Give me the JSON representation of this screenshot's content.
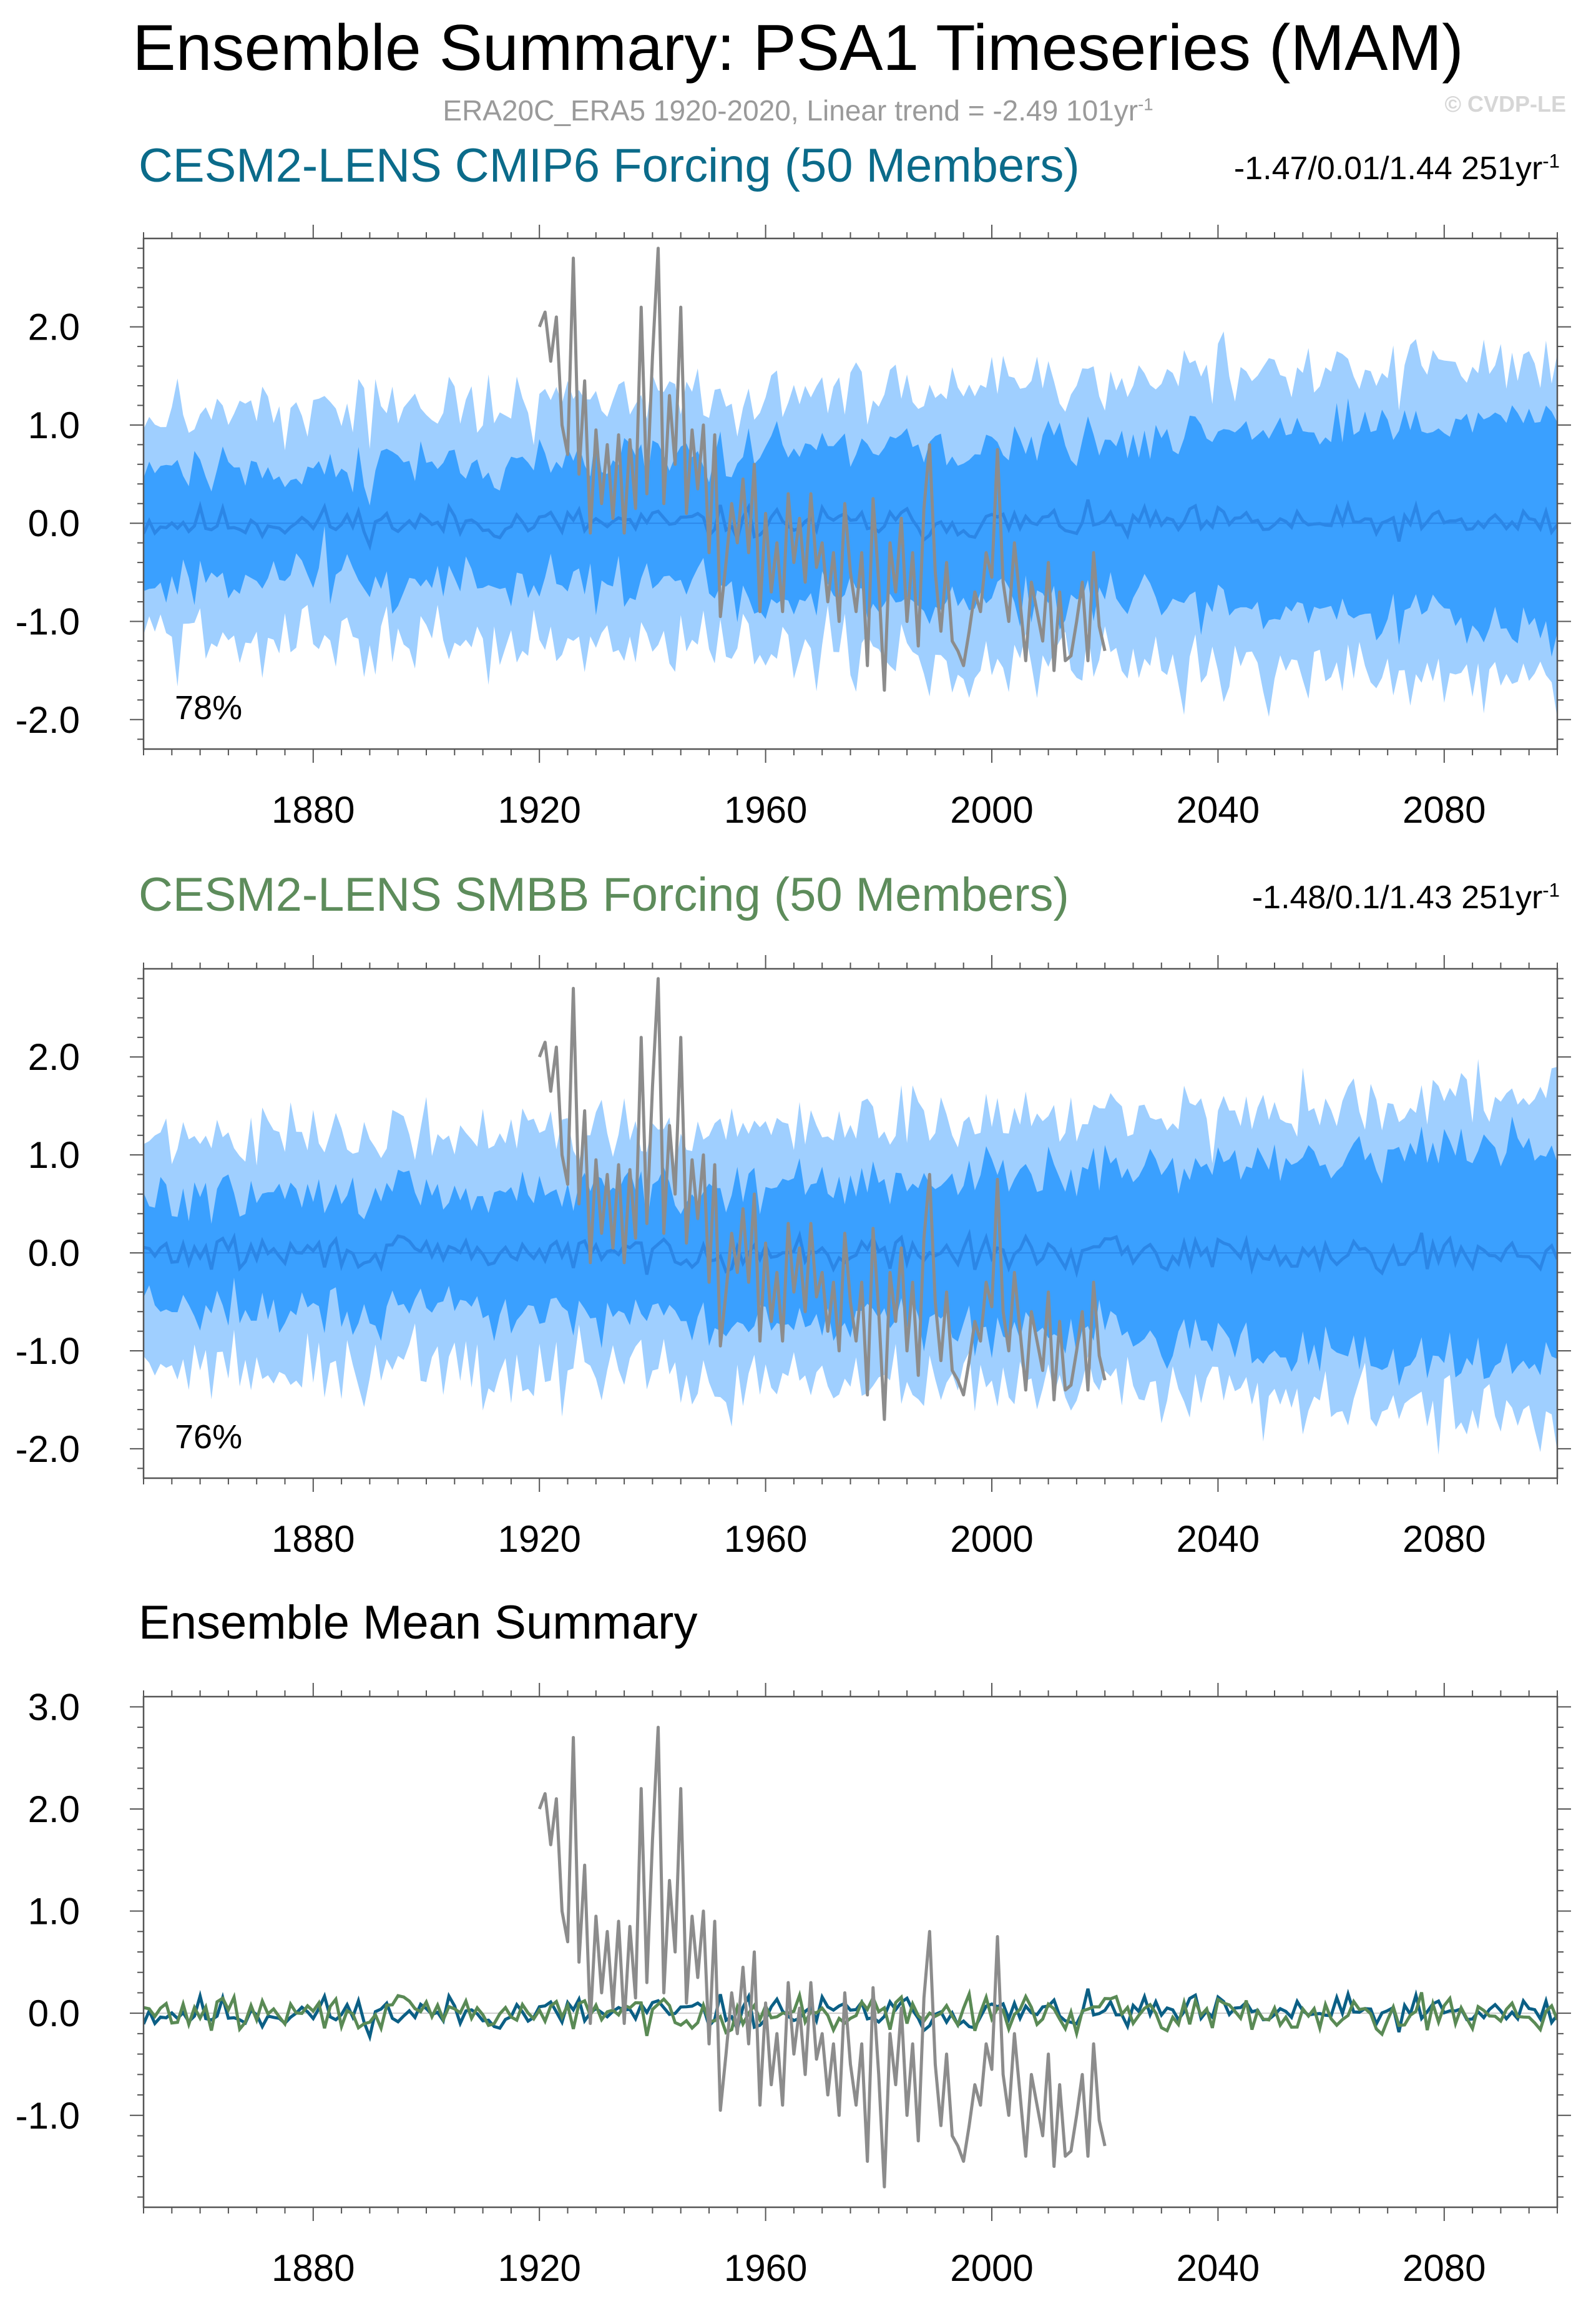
{
  "title": "Ensemble Summary: PSA1 Timeseries (MAM)",
  "subtitle": "ERA20C_ERA5 1920-2020, Linear trend = -2.49 101yr",
  "subtitle_sup": "-1",
  "watermark": "© CVDP-LE",
  "colors": {
    "outer_band": "#9fcfff",
    "inner_band": "#3aa0ff",
    "ens_mean_line": "#2b86e6",
    "obs_line": "#8c8c8c",
    "cmip6_title": "#0b6b8a",
    "smbb_title": "#5d8c5b",
    "cmip6_mean": "#0b5f85",
    "smbb_mean": "#5a8a55"
  },
  "panels": [
    {
      "title": "CESM2-LENS CMIP6 Forcing (50 Members)",
      "stats": "-1.47/0.01/1.44 251yr",
      "stats_sup": "-1",
      "percent": "78%"
    },
    {
      "title": "CESM2-LENS SMBB Forcing (50 Members)",
      "stats": "-1.48/0.1/1.43 251yr",
      "stats_sup": "-1",
      "percent": "76%"
    },
    {
      "title": "Ensemble Mean Summary"
    }
  ],
  "chart_data": [
    {
      "type": "area",
      "title": "CESM2-LENS CMIP6 Forcing (50 Members)",
      "x_range": [
        1850,
        2100
      ],
      "xticks": [
        1880,
        1920,
        1960,
        2000,
        2040,
        2080
      ],
      "ylim": [
        -2.3,
        2.9
      ],
      "yticks": [
        2.0,
        1.0,
        0.0,
        -1.0,
        -2.0
      ],
      "ytick_labels": [
        "2.0",
        "1.0",
        "0.0",
        "-1.0",
        "-2.0"
      ],
      "bands": {
        "outer_half_width": 1.45,
        "inner_half_width": 0.62,
        "outer_start": 1.15,
        "outer_end": 1.65,
        "inner_start": 0.55,
        "inner_end": 1.1
      },
      "series": [
        {
          "name": "ensemble mean",
          "seed": 11,
          "amp": 0.12
        },
        {
          "name": "ERA20C_ERA5 observations",
          "x_start": 1920,
          "x_end": 2020,
          "key_points": [
            [
              1920,
              2.0
            ],
            [
              1921,
              2.15
            ],
            [
              1922,
              1.65
            ],
            [
              1923,
              2.1
            ],
            [
              1924,
              1.0
            ],
            [
              1925,
              0.7
            ],
            [
              1926,
              2.7
            ],
            [
              1927,
              0.5
            ],
            [
              1928,
              1.45
            ],
            [
              1929,
              -0.1
            ],
            [
              1930,
              0.95
            ],
            [
              1931,
              0.2
            ],
            [
              1932,
              0.8
            ],
            [
              1933,
              0.05
            ],
            [
              1934,
              0.9
            ],
            [
              1935,
              -0.1
            ],
            [
              1936,
              0.85
            ],
            [
              1937,
              0.15
            ],
            [
              1938,
              2.2
            ],
            [
              1939,
              0.3
            ],
            [
              1940,
              1.7
            ],
            [
              1941,
              2.8
            ],
            [
              1942,
              0.2
            ],
            [
              1943,
              1.3
            ],
            [
              1944,
              0.6
            ],
            [
              1945,
              2.2
            ],
            [
              1946,
              0.1
            ],
            [
              1947,
              0.95
            ],
            [
              1948,
              0.35
            ],
            [
              1949,
              1.0
            ],
            [
              1950,
              -0.3
            ],
            [
              1951,
              0.9
            ],
            [
              1952,
              -0.95
            ],
            [
              1953,
              -0.4
            ],
            [
              1954,
              0.2
            ],
            [
              1955,
              -0.2
            ],
            [
              1956,
              0.45
            ],
            [
              1957,
              -0.3
            ],
            [
              1958,
              0.6
            ],
            [
              1959,
              -0.9
            ],
            [
              1960,
              0.1
            ],
            [
              1961,
              -0.7
            ],
            [
              1962,
              -0.2
            ],
            [
              1963,
              -0.9
            ],
            [
              1964,
              0.3
            ],
            [
              1965,
              -0.4
            ],
            [
              1966,
              0.05
            ],
            [
              1967,
              -0.6
            ],
            [
              1968,
              0.3
            ],
            [
              1969,
              -0.45
            ],
            [
              1970,
              -0.2
            ],
            [
              1971,
              -0.8
            ],
            [
              1972,
              -0.3
            ],
            [
              1973,
              -1.0
            ],
            [
              1974,
              0.2
            ],
            [
              1975,
              -0.5
            ],
            [
              1976,
              -0.9
            ],
            [
              1977,
              -0.3
            ],
            [
              1978,
              -1.45
            ],
            [
              1979,
              0.25
            ],
            [
              1980,
              -0.6
            ],
            [
              1981,
              -1.7
            ],
            [
              1982,
              -0.2
            ],
            [
              1983,
              -0.7
            ],
            [
              1984,
              0.05
            ],
            [
              1985,
              -1.0
            ],
            [
              1986,
              -0.3
            ],
            [
              1987,
              -1.25
            ],
            [
              1988,
              0.15
            ],
            [
              1989,
              0.8
            ],
            [
              1990,
              -0.5
            ],
            [
              1991,
              -1.1
            ],
            [
              1992,
              -0.4
            ],
            [
              1993,
              -1.2
            ],
            [
              1994,
              -1.3
            ],
            [
              1995,
              -1.45
            ],
            [
              1996,
              -1.1
            ],
            [
              1997,
              -0.7
            ],
            [
              1998,
              -0.9
            ],
            [
              1999,
              -0.3
            ],
            [
              2000,
              -0.55
            ],
            [
              2001,
              0.75
            ],
            [
              2002,
              -0.6
            ],
            [
              2003,
              -1.0
            ],
            [
              2004,
              -0.2
            ],
            [
              2005,
              -0.8
            ],
            [
              2006,
              -1.4
            ],
            [
              2007,
              -0.6
            ],
            [
              2008,
              -0.9
            ],
            [
              2009,
              -1.2
            ],
            [
              2010,
              -0.4
            ],
            [
              2011,
              -1.5
            ],
            [
              2012,
              -0.7
            ],
            [
              2013,
              -1.4
            ],
            [
              2014,
              -1.35
            ],
            [
              2015,
              -1.0
            ],
            [
              2016,
              -0.6
            ],
            [
              2017,
              -1.4
            ],
            [
              2018,
              -0.3
            ],
            [
              2019,
              -1.05
            ],
            [
              2020,
              -1.3
            ]
          ]
        }
      ]
    },
    {
      "type": "area",
      "title": "CESM2-LENS SMBB Forcing (50 Members)",
      "x_range": [
        1850,
        2100
      ],
      "xticks": [
        1880,
        1920,
        1960,
        2000,
        2040,
        2080
      ],
      "ylim": [
        -2.3,
        2.9
      ],
      "yticks": [
        2.0,
        1.0,
        0.0,
        -1.0,
        -2.0
      ],
      "ytick_labels": [
        "2.0",
        "1.0",
        "0.0",
        "-1.0",
        "-2.0"
      ],
      "bands": {
        "outer_half_width": 1.45,
        "inner_half_width": 0.62,
        "outer_start": 1.15,
        "outer_end": 1.65,
        "inner_start": 0.55,
        "inner_end": 1.1
      },
      "series": [
        {
          "name": "ensemble mean",
          "seed": 29,
          "amp": 0.12
        },
        {
          "name": "ERA20C_ERA5 observations",
          "same_as_panel": 0
        }
      ]
    },
    {
      "type": "line",
      "title": "Ensemble Mean Summary",
      "x_range": [
        1850,
        2100
      ],
      "xticks": [
        1880,
        1920,
        1960,
        2000,
        2040,
        2080
      ],
      "ylim": [
        -1.9,
        3.1
      ],
      "yticks": [
        3.0,
        2.0,
        1.0,
        0.0,
        -1.0
      ],
      "ytick_labels": [
        "3.0",
        "2.0",
        "1.0",
        "0.0",
        "-1.0"
      ],
      "series": [
        {
          "name": "CMIP6 ensemble mean",
          "seed": 11,
          "amp": 0.12
        },
        {
          "name": "SMBB ensemble mean",
          "seed": 29,
          "amp": 0.12
        },
        {
          "name": "ERA20C_ERA5 observations",
          "same_as_panel": 0
        }
      ]
    }
  ]
}
